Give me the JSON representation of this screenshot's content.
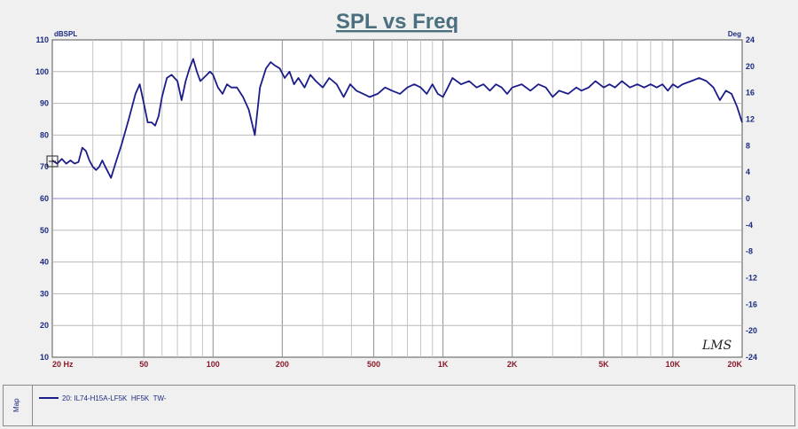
{
  "chart_data": {
    "type": "line",
    "title": "SPL vs Freq",
    "y_unit_label": "dBSPL",
    "y2_unit_label": "Deg",
    "xscale": "log",
    "xlim": [
      20,
      20000
    ],
    "ylim": [
      10,
      110
    ],
    "y2lim": [
      -24,
      24
    ],
    "grid": true,
    "x_tick_labels": [
      {
        "value": 20,
        "label": "20  Hz"
      },
      {
        "value": 50,
        "label": "50"
      },
      {
        "value": 100,
        "label": "100"
      },
      {
        "value": 200,
        "label": "200"
      },
      {
        "value": 500,
        "label": "500"
      },
      {
        "value": 1000,
        "label": "1K"
      },
      {
        "value": 2000,
        "label": "2K"
      },
      {
        "value": 5000,
        "label": "5K"
      },
      {
        "value": 10000,
        "label": "10K"
      },
      {
        "value": 20000,
        "label": "20K"
      }
    ],
    "y_ticks": [
      10,
      20,
      30,
      40,
      50,
      60,
      70,
      80,
      90,
      100,
      110
    ],
    "y2_ticks": [
      -24,
      -20,
      -16,
      -12,
      -8,
      -4,
      0,
      4,
      8,
      12,
      16,
      20,
      24
    ],
    "watermark": "LMS",
    "series": [
      {
        "name": "20: IL74-H15A-LF5K  HF5K  TW-",
        "color": "#1c1c8a",
        "x": [
          20,
          21,
          22,
          23,
          24,
          25,
          26,
          27,
          28,
          29,
          30,
          31,
          32,
          33,
          34,
          36,
          38,
          40,
          43,
          46,
          48,
          50,
          52,
          54,
          56,
          58,
          60,
          63,
          66,
          70,
          73,
          76,
          79,
          82,
          85,
          88,
          91,
          94,
          97,
          100,
          105,
          110,
          115,
          120,
          127,
          135,
          143,
          152,
          160,
          170,
          178,
          185,
          195,
          205,
          215,
          225,
          235,
          250,
          265,
          280,
          300,
          320,
          345,
          370,
          395,
          420,
          450,
          480,
          520,
          560,
          600,
          650,
          700,
          750,
          800,
          850,
          900,
          950,
          1000,
          1050,
          1100,
          1200,
          1300,
          1400,
          1500,
          1600,
          1700,
          1800,
          1900,
          2000,
          2200,
          2400,
          2600,
          2800,
          3000,
          3200,
          3500,
          3800,
          4000,
          4300,
          4600,
          5000,
          5300,
          5600,
          6000,
          6500,
          7000,
          7500,
          8000,
          8500,
          9000,
          9500,
          10000,
          10500,
          11000,
          12000,
          13000,
          14000,
          15000,
          16000,
          17000,
          18000,
          19000,
          20000
        ],
        "y": [
          72,
          71,
          72.5,
          71,
          72,
          71,
          71.5,
          76,
          75,
          72,
          70,
          69,
          70,
          72,
          70,
          66.5,
          72,
          77,
          85,
          93,
          96,
          90,
          84,
          84,
          83,
          86,
          92,
          98,
          99,
          97,
          91,
          97,
          101,
          104,
          100,
          97,
          98,
          99,
          100,
          99,
          95,
          93,
          96,
          95,
          95,
          92,
          88,
          80,
          95,
          101,
          103,
          102,
          101,
          98,
          100,
          96,
          98,
          95,
          99,
          97,
          95,
          98,
          96,
          92,
          96,
          94,
          93,
          92,
          93,
          95,
          94,
          93,
          95,
          96,
          95,
          93,
          96,
          93,
          92,
          95,
          98,
          96,
          97,
          95,
          96,
          94,
          96,
          95,
          93,
          95,
          96,
          94,
          96,
          95,
          92,
          94,
          93,
          95,
          94,
          95,
          97,
          95,
          96,
          95,
          97,
          95,
          96,
          95,
          96,
          95,
          96,
          94,
          96,
          95,
          96,
          97,
          98,
          97,
          95,
          91,
          94,
          93,
          89,
          84
        ]
      }
    ]
  },
  "legend": {
    "panel_label": "Map",
    "entries": [
      {
        "text": "20: IL74-H15A-LF5K  HF5K  TW-",
        "color": "#1c1c8a"
      }
    ]
  }
}
